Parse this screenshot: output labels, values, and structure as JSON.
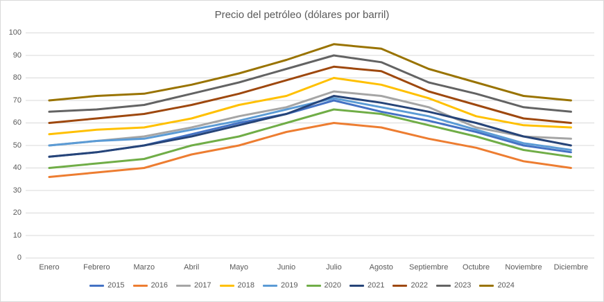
{
  "chart_data": {
    "type": "line",
    "title": "Precio del petróleo (dólares por barril)",
    "xlabel": "",
    "ylabel": "",
    "ylim": [
      0,
      100
    ],
    "y_ticks": [
      0,
      10,
      20,
      30,
      40,
      50,
      60,
      70,
      80,
      90,
      100
    ],
    "grid": true,
    "legend_position": "bottom",
    "categories": [
      "Enero",
      "Febrero",
      "Marzo",
      "Abril",
      "Mayo",
      "Junio",
      "Julio",
      "Agosto",
      "Septiembre",
      "Octubre",
      "Noviembre",
      "Diciembre"
    ],
    "series": [
      {
        "name": "2015",
        "color": "#4472C4",
        "values": [
          45,
          47,
          50,
          55,
          60,
          64,
          70,
          65,
          61,
          56,
          50,
          47
        ]
      },
      {
        "name": "2016",
        "color": "#ED7D31",
        "values": [
          36,
          38,
          40,
          46,
          50,
          56,
          60,
          58,
          53,
          49,
          43,
          40
        ]
      },
      {
        "name": "2017",
        "color": "#A5A5A5",
        "values": [
          50,
          52,
          54,
          58,
          63,
          67,
          74,
          72,
          67,
          58,
          54,
          53
        ]
      },
      {
        "name": "2018",
        "color": "#FFC000",
        "values": [
          55,
          57,
          58,
          62,
          68,
          72,
          80,
          77,
          71,
          63,
          59,
          58
        ]
      },
      {
        "name": "2019",
        "color": "#5B9BD5",
        "values": [
          50,
          52,
          53,
          57,
          61,
          66,
          71,
          67,
          63,
          57,
          51,
          48
        ]
      },
      {
        "name": "2020",
        "color": "#70AD47",
        "values": [
          40,
          42,
          44,
          50,
          54,
          60,
          66,
          64,
          59,
          54,
          48,
          45
        ]
      },
      {
        "name": "2021",
        "color": "#264478",
        "values": [
          45,
          47,
          50,
          54,
          59,
          64,
          72,
          69,
          65,
          60,
          54,
          50
        ]
      },
      {
        "name": "2022",
        "color": "#9E480E",
        "values": [
          60,
          62,
          64,
          68,
          73,
          79,
          85,
          83,
          74,
          68,
          62,
          60
        ]
      },
      {
        "name": "2023",
        "color": "#636363",
        "values": [
          65,
          66,
          68,
          73,
          78,
          84,
          90,
          87,
          78,
          73,
          67,
          65
        ]
      },
      {
        "name": "2024",
        "color": "#997300",
        "values": [
          70,
          72,
          73,
          77,
          82,
          88,
          95,
          93,
          84,
          78,
          72,
          70
        ]
      }
    ]
  },
  "style": {
    "grid_color": "#D9D9D9",
    "text_color": "#595959",
    "background": "#FFFFFF",
    "line_width": 3
  }
}
